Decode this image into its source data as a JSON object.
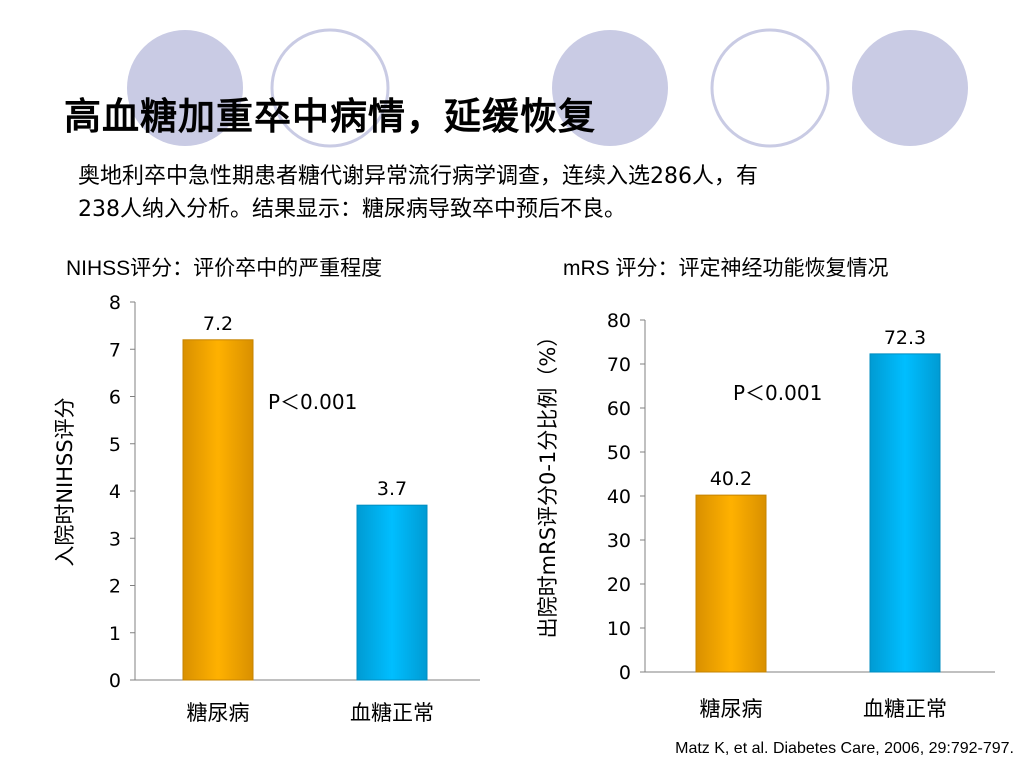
{
  "slide": {
    "title": "高血糖加重卒中病情，延缓恢复",
    "intro_line1": "奥地利卒中急性期患者糖代谢异常流行病学调查，连续入选286人，有",
    "intro_line2": "238人纳入分析。结果显示：糖尿病导致卒中预后不良。",
    "citation": "Matz K, et al. Diabetes Care, 2006, 29:792-797.",
    "deco_circle_colors": [
      "#c9cbe4",
      "#ffffff"
    ]
  },
  "chart_data": [
    {
      "type": "bar",
      "title": "NIHSS评分：评价卒中的严重程度",
      "ylabel": "入院时NIHSS评分",
      "xlabel": "",
      "categories": [
        "糖尿病",
        "血糖正常"
      ],
      "values": [
        7.2,
        3.7
      ],
      "value_labels": [
        "7.2",
        "3.7"
      ],
      "bar_colors": [
        "#f7a400",
        "#00b0f0"
      ],
      "ylim": [
        0,
        8
      ],
      "yticks": [
        0,
        1,
        2,
        3,
        4,
        5,
        6,
        7,
        8
      ],
      "annotation": "P＜0.001",
      "grid": false,
      "legend": "none"
    },
    {
      "type": "bar",
      "title": "mRS 评分：评定神经功能恢复情况",
      "ylabel": "出院时mRS评分0-1分比例（%）",
      "xlabel": "",
      "categories": [
        "糖尿病",
        "血糖正常"
      ],
      "values": [
        40.2,
        72.3
      ],
      "value_labels": [
        "40.2",
        "72.3"
      ],
      "bar_colors": [
        "#f7a400",
        "#00b0f0"
      ],
      "ylim": [
        0,
        80
      ],
      "yticks": [
        0,
        10,
        20,
        30,
        40,
        50,
        60,
        70,
        80
      ],
      "annotation": "P＜0.001",
      "grid": false,
      "legend": "none"
    }
  ]
}
